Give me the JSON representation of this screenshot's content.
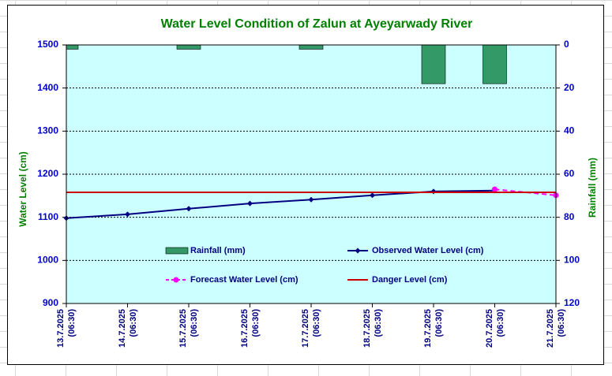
{
  "chart_data": {
    "type": "combo",
    "title": "Water Level Condition of Zalun at Ayeyarwady River",
    "y_label": "Water Level (cm)",
    "y2_label": "Rainfall (mm)",
    "categories": [
      "13.7.2025\n(06:30)",
      "14.7.2025\n(06:30)",
      "15.7.2025\n(06:30)",
      "16.7.2025\n(06:30)",
      "17.7.2025\n(06:30)",
      "18.7.2025\n(06:30)",
      "19.7.2025\n(06:30)",
      "20.7.2025\n(06:30)",
      "21.7.2025\n(06:30)"
    ],
    "ylim": [
      900,
      1500
    ],
    "yticks": [
      900,
      1000,
      1100,
      1200,
      1300,
      1400,
      1500
    ],
    "y2lim": [
      0,
      120
    ],
    "y2ticks": [
      0,
      20,
      40,
      60,
      80,
      100,
      120
    ],
    "y2_reversed": true,
    "grid": true,
    "series": [
      {
        "name": "Rainfall (mm)",
        "type": "bar",
        "axis": "y2",
        "color": "#339966",
        "values": [
          2,
          0,
          2,
          0,
          2,
          0,
          18,
          18,
          null
        ]
      },
      {
        "name": "Observed Water Level (cm)",
        "type": "line",
        "color": "#000080",
        "marker": "diamond",
        "values": [
          1098,
          1107,
          1120,
          1132,
          1141,
          1151,
          1160,
          1162,
          null
        ]
      },
      {
        "name": "Forecast Water Level (cm)",
        "type": "line",
        "color": "#ff00ff",
        "marker": "circle",
        "dashed": true,
        "values": [
          null,
          null,
          null,
          null,
          null,
          null,
          null,
          1165,
          1151
        ]
      },
      {
        "name": "Danger Level (cm)",
        "type": "line",
        "color": "#cc0000",
        "marker": "none",
        "values": [
          1158,
          1158,
          1158,
          1158,
          1158,
          1158,
          1158,
          1158,
          1158
        ]
      }
    ]
  }
}
